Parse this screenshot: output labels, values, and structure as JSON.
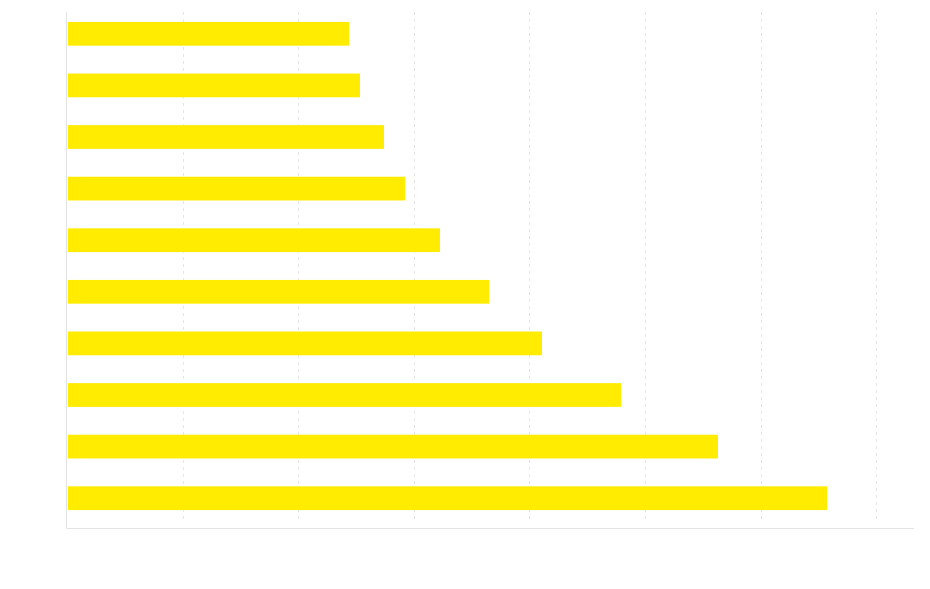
{
  "chart_data": {
    "type": "bar",
    "orientation": "horizontal",
    "categories": [
      "",
      "",
      "",
      "",
      "",
      "",
      "",
      "",
      "",
      ""
    ],
    "values": [
      282,
      293,
      317,
      338,
      373,
      422,
      475,
      554,
      651,
      760
    ],
    "xlim": [
      0,
      847
    ],
    "x_grid_step": 115.6,
    "grid": true,
    "bar_color": "#ffec00",
    "title": "",
    "xlabel": "",
    "ylabel": ""
  }
}
